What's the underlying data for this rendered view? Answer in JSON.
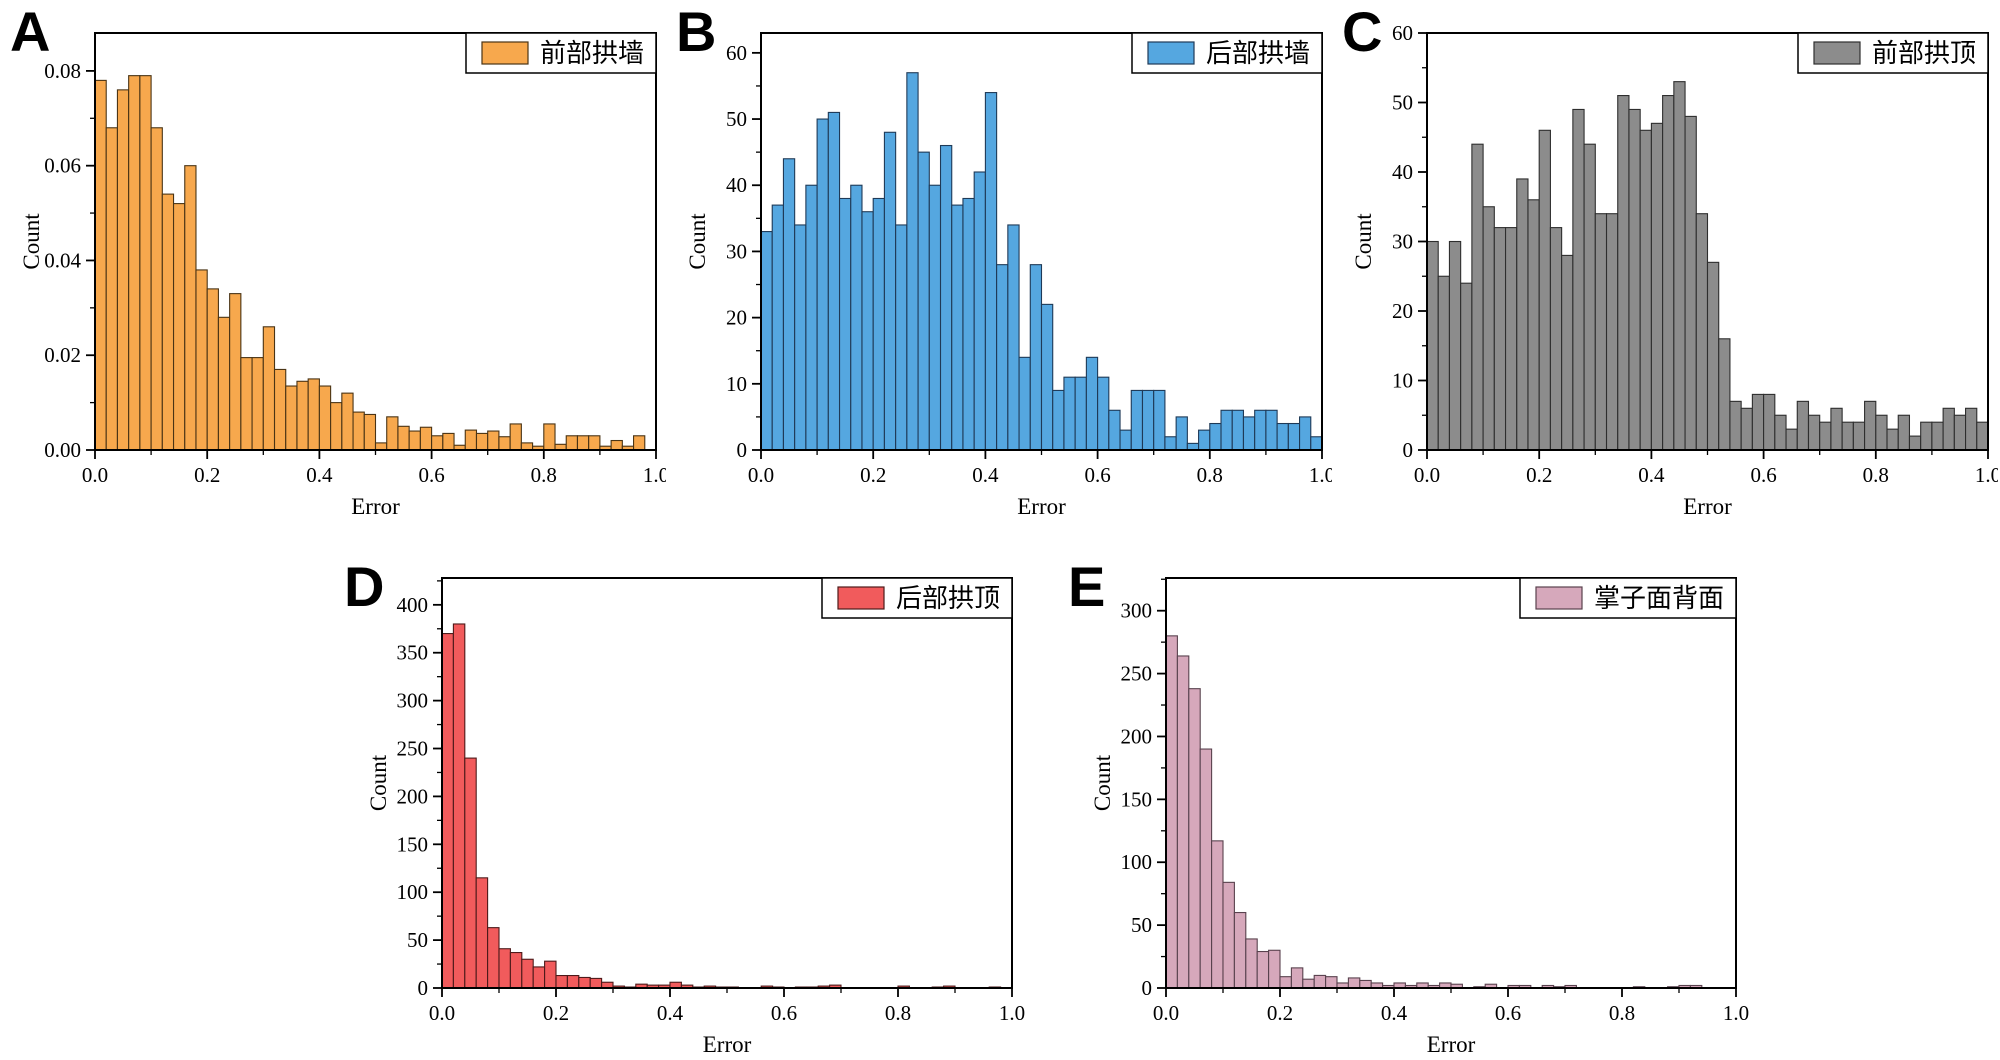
{
  "figure": {
    "background": "#ffffff"
  },
  "chart_data": [
    {
      "type": "bar",
      "panel": "A",
      "legend": "前部拱墙",
      "xlabel": "Error",
      "ylabel": "Count",
      "bar_color": "#F7A84D",
      "edge_color": "#4a3415",
      "xlim": [
        0.0,
        1.0
      ],
      "ylim": [
        0,
        0.088
      ],
      "xticks": [
        0.0,
        0.2,
        0.4,
        0.6,
        0.8,
        1.0
      ],
      "x_minor_step": 0.1,
      "yticks": [
        0.0,
        0.02,
        0.04,
        0.06,
        0.08
      ],
      "y_minor_step": 0.01,
      "y_tick_decimals": 2,
      "x_tick_decimals": 1,
      "bin_start": 0.0,
      "bin_width": 0.02,
      "values": [
        0.078,
        0.068,
        0.076,
        0.079,
        0.079,
        0.068,
        0.054,
        0.052,
        0.06,
        0.038,
        0.034,
        0.028,
        0.033,
        0.0195,
        0.0195,
        0.026,
        0.017,
        0.0135,
        0.0145,
        0.015,
        0.0135,
        0.01,
        0.012,
        0.008,
        0.0075,
        0.0015,
        0.007,
        0.005,
        0.004,
        0.0048,
        0.003,
        0.0035,
        0.001,
        0.0042,
        0.0035,
        0.004,
        0.0028,
        0.0055,
        0.0015,
        0.0008,
        0.0055,
        0.0012,
        0.003,
        0.003,
        0.003,
        0.0008,
        0.002,
        0.0008,
        0.003,
        0
      ]
    },
    {
      "type": "bar",
      "panel": "B",
      "legend": "后部拱墙",
      "xlabel": "Error",
      "ylabel": "Count",
      "bar_color": "#55A7E0",
      "edge_color": "#1f3a57",
      "xlim": [
        0.0,
        1.0
      ],
      "ylim": [
        0,
        63
      ],
      "xticks": [
        0.0,
        0.2,
        0.4,
        0.6,
        0.8,
        1.0
      ],
      "x_minor_step": 0.1,
      "yticks": [
        0,
        10,
        20,
        30,
        40,
        50,
        60
      ],
      "y_minor_step": 5,
      "y_tick_decimals": 0,
      "x_tick_decimals": 1,
      "bin_start": 0.0,
      "bin_width": 0.02,
      "values": [
        33,
        37,
        44,
        34,
        40,
        50,
        51,
        38,
        40,
        36,
        38,
        48,
        34,
        57,
        45,
        40,
        46,
        37,
        38,
        42,
        54,
        28,
        34,
        14,
        28,
        22,
        9,
        11,
        11,
        14,
        11,
        6,
        3,
        9,
        9,
        9,
        2,
        5,
        1,
        3,
        4,
        6,
        6,
        5,
        6,
        6,
        4,
        4,
        5,
        2
      ]
    },
    {
      "type": "bar",
      "panel": "C",
      "legend": "前部拱顶",
      "xlabel": "Error",
      "ylabel": "Count",
      "bar_color": "#8C8C8C",
      "edge_color": "#2e2e2e",
      "xlim": [
        0.0,
        1.0
      ],
      "ylim": [
        0,
        60
      ],
      "xticks": [
        0.0,
        0.2,
        0.4,
        0.6,
        0.8,
        1.0
      ],
      "x_minor_step": 0.1,
      "yticks": [
        0,
        10,
        20,
        30,
        40,
        50,
        60
      ],
      "y_minor_step": 5,
      "y_tick_decimals": 0,
      "x_tick_decimals": 1,
      "bin_start": 0.0,
      "bin_width": 0.02,
      "values": [
        30,
        25,
        30,
        24,
        44,
        35,
        32,
        32,
        39,
        36,
        46,
        32,
        28,
        49,
        44,
        34,
        34,
        51,
        49,
        46,
        47,
        51,
        53,
        48,
        34,
        27,
        16,
        7,
        6,
        8,
        8,
        5,
        3,
        7,
        5,
        4,
        6,
        4,
        4,
        7,
        5,
        3,
        5,
        2,
        4,
        4,
        6,
        5,
        6,
        4
      ]
    },
    {
      "type": "bar",
      "panel": "D",
      "legend": "后部拱顶",
      "xlabel": "Error",
      "ylabel": "Count",
      "bar_color": "#F15B5C",
      "edge_color": "#4d1a1a",
      "xlim": [
        0.0,
        1.0
      ],
      "ylim": [
        0,
        428
      ],
      "xticks": [
        0.0,
        0.2,
        0.4,
        0.6,
        0.8,
        1.0
      ],
      "x_minor_step": 0.1,
      "yticks": [
        0,
        50,
        100,
        150,
        200,
        250,
        300,
        350,
        400
      ],
      "y_minor_step": 25,
      "y_tick_decimals": 0,
      "x_tick_decimals": 1,
      "bin_start": 0.0,
      "bin_width": 0.02,
      "values": [
        370,
        380,
        240,
        115,
        63,
        41,
        37,
        30,
        22,
        28,
        13,
        13,
        11,
        10,
        6,
        2,
        1,
        4,
        3,
        3,
        6,
        3,
        1,
        2,
        1,
        1,
        0,
        0,
        2,
        1,
        0,
        1,
        1,
        2,
        3,
        0,
        0,
        0,
        0,
        0,
        2,
        0,
        0,
        1,
        2,
        0,
        0,
        0,
        1,
        0
      ]
    },
    {
      "type": "bar",
      "panel": "E",
      "legend": "掌子面背面",
      "xlabel": "Error",
      "ylabel": "Count",
      "bar_color": "#D6A8BB",
      "edge_color": "#59424e",
      "xlim": [
        0.0,
        1.0
      ],
      "ylim": [
        0,
        326
      ],
      "xticks": [
        0.0,
        0.2,
        0.4,
        0.6,
        0.8,
        1.0
      ],
      "x_minor_step": 0.1,
      "yticks": [
        0,
        50,
        100,
        150,
        200,
        250,
        300
      ],
      "y_minor_step": 25,
      "y_tick_decimals": 0,
      "x_tick_decimals": 1,
      "bin_start": 0.0,
      "bin_width": 0.02,
      "values": [
        280,
        264,
        238,
        190,
        117,
        84,
        60,
        39,
        29,
        30,
        9,
        16,
        7,
        10,
        9,
        4,
        8,
        6,
        4,
        2,
        4,
        2,
        4,
        2,
        4,
        3,
        0,
        1,
        3,
        0,
        2,
        2,
        0,
        2,
        1,
        2,
        0,
        0,
        0,
        0,
        0,
        1,
        0,
        0,
        1,
        2,
        2,
        0,
        0,
        0
      ]
    }
  ]
}
